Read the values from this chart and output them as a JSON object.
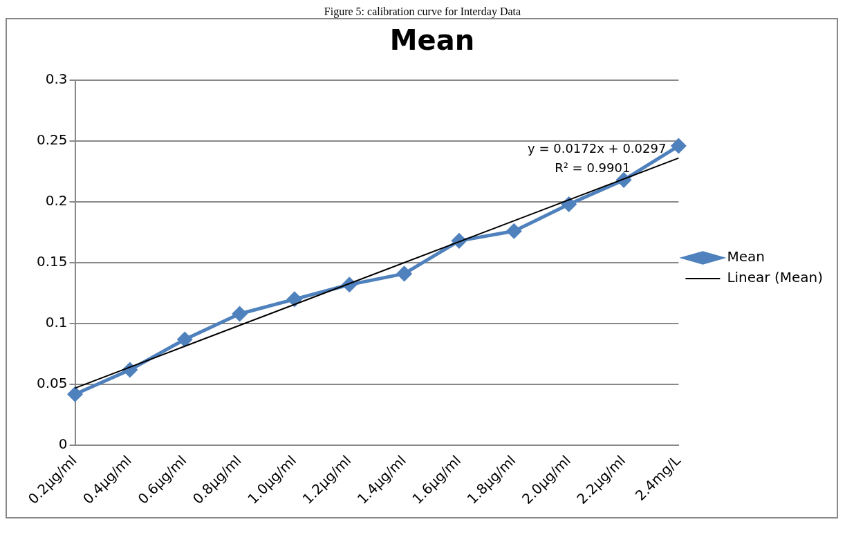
{
  "chart_data": {
    "type": "line",
    "title": "Mean",
    "categories": [
      "0.2μg/ml",
      "0.4μg/ml",
      "0.6μg/ml",
      "0.8μg/ml",
      "1.0μg/ml",
      "1.2μg/ml",
      "1.4μg/ml",
      "1.6μg/ml",
      "1.8μg/ml",
      "2.0μg/ml",
      "2.2μg/ml",
      "2.4mg/L"
    ],
    "series": [
      {
        "name": "Mean",
        "color": "#4f81bd",
        "marker": "diamond",
        "values": [
          0.042,
          0.062,
          0.087,
          0.108,
          0.12,
          0.132,
          0.141,
          0.168,
          0.176,
          0.198,
          0.218,
          0.246
        ]
      },
      {
        "name": "Linear (Mean)",
        "color": "#000000",
        "marker": "none",
        "values": [
          0.047,
          null,
          null,
          null,
          null,
          null,
          null,
          null,
          null,
          null,
          null,
          0.236
        ]
      }
    ],
    "ylim": [
      0,
      0.3
    ],
    "yticks": [
      0,
      0.05,
      0.1,
      0.15,
      0.2,
      0.25,
      0.3
    ],
    "grid": "y",
    "legend": "right",
    "annotations": [
      "Figure 5: calibration curve for Interday Data",
      "y = 0.0172x + 0.0297",
      "R² = 0.9901"
    ]
  }
}
